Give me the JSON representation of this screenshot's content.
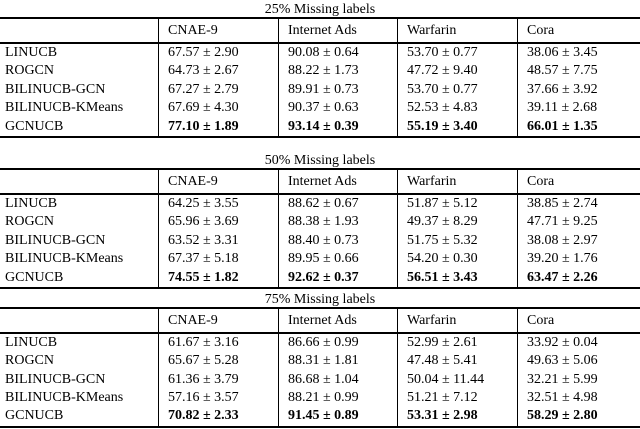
{
  "page": {
    "background_color": "#ffffff",
    "text_color": "#000000",
    "rule_color": "#000000"
  },
  "tables": [
    {
      "title": "25% Missing labels",
      "columns": [
        "CNAE-9",
        "Internet Ads",
        "Warfarin",
        "Cora"
      ],
      "rows": [
        {
          "label": "LINUCB",
          "bold": false,
          "values": [
            "67.57 ± 2.90",
            "90.08 ± 0.64",
            "53.70 ± 0.77",
            "38.06 ± 3.45"
          ]
        },
        {
          "label": "ROGCN",
          "bold": false,
          "values": [
            "64.73 ± 2.67",
            "88.22 ± 1.73",
            "47.72 ± 9.40",
            "48.57 ± 7.75"
          ]
        },
        {
          "label": "BILINUCB-GCN",
          "bold": false,
          "values": [
            "67.27 ± 2.79",
            "89.91 ± 0.73",
            "53.70 ± 0.77",
            "37.66 ± 3.92"
          ]
        },
        {
          "label": "BILINUCB-KMeans",
          "bold": false,
          "values": [
            "67.69 ± 4.30",
            "90.37 ± 0.63",
            "52.53 ± 4.83",
            "39.11 ± 2.68"
          ]
        },
        {
          "label": "GCNUCB",
          "bold": true,
          "values": [
            "77.10 ± 1.89",
            "93.14 ± 0.39",
            "55.19 ± 3.40",
            "66.01 ± 1.35"
          ]
        }
      ]
    },
    {
      "title": "50% Missing labels",
      "columns": [
        "CNAE-9",
        "Internet Ads",
        "Warfarin",
        "Cora"
      ],
      "rows": [
        {
          "label": "LINUCB",
          "bold": false,
          "values": [
            "64.25 ± 3.55",
            "88.62 ± 0.67",
            "51.87 ± 5.12",
            "38.85 ± 2.74"
          ]
        },
        {
          "label": "ROGCN",
          "bold": false,
          "values": [
            "65.96 ± 3.69",
            "88.38 ± 1.93",
            "49.37 ± 8.29",
            "47.71 ± 9.25"
          ]
        },
        {
          "label": "BILINUCB-GCN",
          "bold": false,
          "values": [
            "63.52 ± 3.31",
            "88.40 ± 0.73",
            "51.75 ± 5.32",
            "38.08 ± 2.97"
          ]
        },
        {
          "label": "BILINUCB-KMeans",
          "bold": false,
          "values": [
            "67.37 ± 5.18",
            "89.95 ± 0.66",
            "54.20 ± 0.30",
            "39.20 ± 1.76"
          ]
        },
        {
          "label": "GCNUCB",
          "bold": true,
          "values": [
            "74.55 ± 1.82",
            "92.62 ± 0.37",
            "56.51 ± 3.43",
            "63.47 ± 2.26"
          ]
        }
      ]
    },
    {
      "title": "75% Missing labels",
      "columns": [
        "CNAE-9",
        "Internet Ads",
        "Warfarin",
        "Cora"
      ],
      "rows": [
        {
          "label": "LINUCB",
          "bold": false,
          "values": [
            "61.67 ± 3.16",
            "86.66 ± 0.99",
            "52.99 ± 2.61",
            "33.92 ± 0.04"
          ]
        },
        {
          "label": "ROGCN",
          "bold": false,
          "values": [
            "65.67 ± 5.28",
            "88.31 ± 1.81",
            "47.48 ± 5.41",
            "49.63 ± 5.06"
          ]
        },
        {
          "label": "BILINUCB-GCN",
          "bold": false,
          "values": [
            "61.36 ± 3.79",
            "86.68 ± 1.04",
            "50.04 ± 11.44",
            "32.21 ± 5.99"
          ]
        },
        {
          "label": "BILINUCB-KMeans",
          "bold": false,
          "values": [
            "57.16 ± 3.57",
            "88.21 ± 0.99",
            "51.21 ± 7.12",
            "32.51 ± 4.98"
          ]
        },
        {
          "label": "GCNUCB",
          "bold": true,
          "values": [
            "70.82 ± 2.33",
            "91.45 ± 0.89",
            "53.31 ± 2.98",
            "58.29 ± 2.80"
          ]
        }
      ]
    }
  ]
}
